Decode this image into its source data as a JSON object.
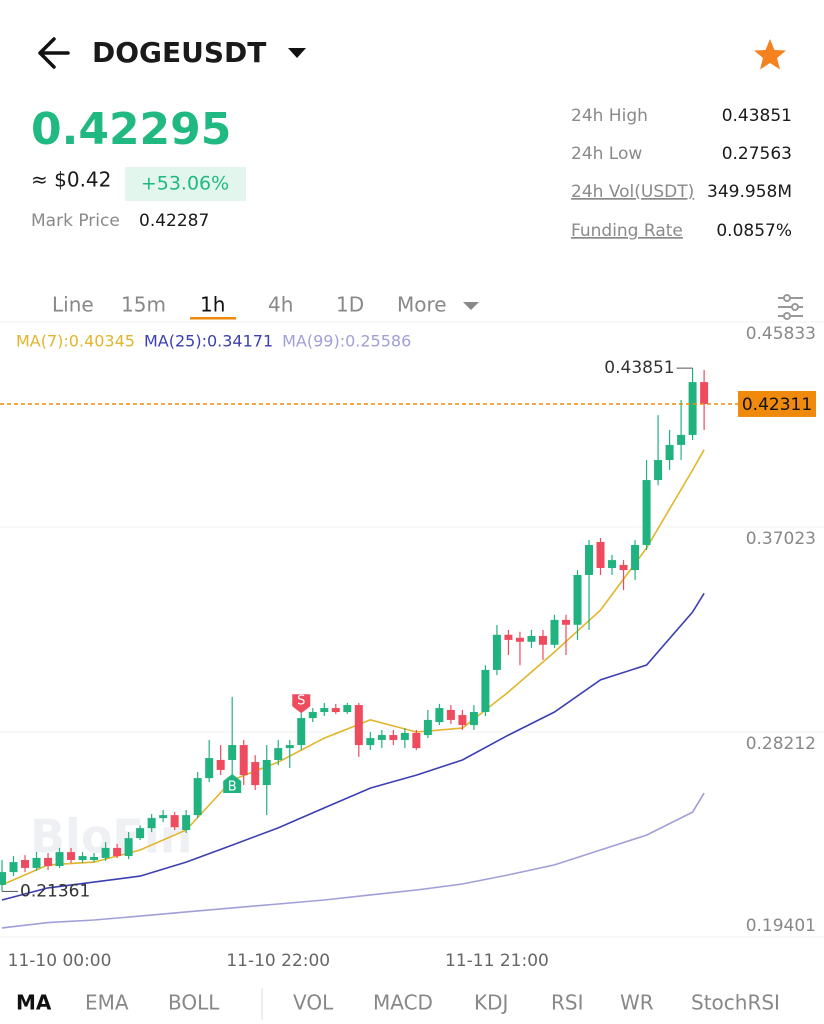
{
  "header": {
    "symbol": "DOGEUSDT"
  },
  "ticker": {
    "price": "0.42295",
    "usd": "≈ $0.42",
    "change": "+53.06%",
    "mark_price_label": "Mark Price",
    "mark_price": "0.42287",
    "stats": [
      {
        "label": "24h High",
        "value": "0.43851"
      },
      {
        "label": "24h Low",
        "value": "0.27563"
      },
      {
        "label": "24h Vol(USDT)",
        "value": "349.958M"
      },
      {
        "label": "Funding Rate",
        "value": "0.0857%"
      }
    ]
  },
  "intervals": [
    "Line",
    "15m",
    "1h",
    "4h",
    "1D",
    "More"
  ],
  "indicator_tabs": [
    "MA",
    "EMA",
    "BOLL",
    "VOL",
    "MACD",
    "KDJ",
    "RSI",
    "WR",
    "StochRSI"
  ],
  "chart_data": {
    "type": "candlestick",
    "watermark": "BloFin",
    "categories": [
      null,
      null,
      null,
      null,
      null,
      "11-10 00:00",
      null,
      null,
      null,
      null,
      null,
      null,
      null,
      null,
      null,
      null,
      null,
      null,
      null,
      null,
      null,
      null,
      null,
      null,
      "11-10 22:00",
      null,
      null,
      null,
      null,
      null,
      null,
      null,
      null,
      null,
      null,
      null,
      null,
      null,
      null,
      null,
      null,
      null,
      null,
      "11-11 21:00",
      null,
      null,
      null,
      null,
      null,
      null,
      null,
      null,
      null,
      null,
      null,
      null,
      null,
      null,
      null,
      null,
      null,
      null
    ],
    "candles": {
      "open": [
        0.2164,
        0.2219,
        0.2271,
        0.2237,
        0.228,
        0.2245,
        0.2305,
        0.2271,
        0.2271,
        0.228,
        0.2323,
        0.2288,
        0.2365,
        0.2408,
        0.2451,
        0.2464,
        0.24,
        0.2464,
        0.2623,
        0.2701,
        0.2701,
        0.2765,
        0.2692,
        0.2593,
        0.2701,
        0.2752,
        0.2765,
        0.2881,
        0.2907,
        0.2924,
        0.2907,
        0.2937,
        0.2765,
        0.2787,
        0.2808,
        0.2787,
        0.2817,
        0.2808,
        0.2864,
        0.2916,
        0.2894,
        0.2851,
        0.2907,
        0.3088,
        0.3239,
        0.3226,
        0.3209,
        0.3234,
        0.3196,
        0.3303,
        0.3282,
        0.3496,
        0.3638,
        0.3526,
        0.3539,
        0.3517,
        0.3625,
        0.3904,
        0.399,
        0.4055,
        0.4098,
        0.4325
      ],
      "high": [
        0.2271,
        0.2288,
        0.2292,
        0.2305,
        0.2301,
        0.2323,
        0.2323,
        0.2305,
        0.2301,
        0.2348,
        0.234,
        0.2391,
        0.242,
        0.2469,
        0.2486,
        0.2477,
        0.2486,
        0.2649,
        0.2787,
        0.2765,
        0.2972,
        0.2787,
        0.2722,
        0.2765,
        0.2787,
        0.2787,
        0.2902,
        0.2924,
        0.2946,
        0.2942,
        0.2946,
        0.2946,
        0.2821,
        0.283,
        0.283,
        0.2838,
        0.283,
        0.2916,
        0.2942,
        0.2937,
        0.2916,
        0.2937,
        0.3108,
        0.3281,
        0.326,
        0.3252,
        0.326,
        0.326,
        0.3325,
        0.3325,
        0.3517,
        0.3646,
        0.3655,
        0.3582,
        0.356,
        0.3646,
        0.399,
        0.4183,
        0.4119,
        0.4248,
        0.43851,
        0.4377
      ],
      "low": [
        0.21361,
        0.2202,
        0.2219,
        0.2224,
        0.2228,
        0.2237,
        0.2258,
        0.2258,
        0.2262,
        0.2267,
        0.228,
        0.2275,
        0.2357,
        0.2391,
        0.2434,
        0.24,
        0.2387,
        0.2451,
        0.2606,
        0.2636,
        0.2572,
        0.2593,
        0.2572,
        0.2464,
        0.2679,
        0.2666,
        0.2744,
        0.2864,
        0.289,
        0.2899,
        0.2899,
        0.2714,
        0.2744,
        0.2752,
        0.2765,
        0.2752,
        0.2744,
        0.2795,
        0.2851,
        0.2856,
        0.283,
        0.283,
        0.289,
        0.3066,
        0.3152,
        0.3108,
        0.3183,
        0.3131,
        0.3183,
        0.3152,
        0.3217,
        0.326,
        0.3496,
        0.3496,
        0.3431,
        0.3474,
        0.3603,
        0.3882,
        0.3947,
        0.399,
        0.4076,
        0.4119
      ],
      "close": [
        0.2219,
        0.2262,
        0.2237,
        0.228,
        0.2245,
        0.2305,
        0.2271,
        0.2288,
        0.2284,
        0.2323,
        0.2288,
        0.2365,
        0.2408,
        0.2451,
        0.2464,
        0.2412,
        0.2464,
        0.2623,
        0.2709,
        0.2658,
        0.2765,
        0.2636,
        0.2593,
        0.2701,
        0.2752,
        0.2765,
        0.2881,
        0.2907,
        0.2924,
        0.2907,
        0.2937,
        0.2765,
        0.2795,
        0.2808,
        0.2787,
        0.2817,
        0.2752,
        0.2873,
        0.2924,
        0.2873,
        0.2851,
        0.2907,
        0.3088,
        0.3239,
        0.3217,
        0.3209,
        0.3234,
        0.3196,
        0.3303,
        0.3282,
        0.3496,
        0.3625,
        0.3526,
        0.356,
        0.3517,
        0.3625,
        0.3904,
        0.399,
        0.4055,
        0.4098,
        0.4325,
        0.42311
      ]
    },
    "up_color": "#20b27f",
    "down_color": "#ef4b5f",
    "series": [
      {
        "name": "MA(7):0.40345",
        "color": "#e2b52c",
        "x": [
          0,
          4,
          8,
          12,
          16,
          20,
          24,
          28,
          32,
          36,
          40,
          44,
          48,
          52,
          56,
          60,
          61
        ],
        "values": [
          0.2164,
          0.225,
          0.2262,
          0.2314,
          0.24,
          0.2615,
          0.2692,
          0.2795,
          0.2873,
          0.2821,
          0.2838,
          0.2993,
          0.3165,
          0.3345,
          0.3612,
          0.3947,
          0.40345
        ]
      },
      {
        "name": "MA(25):0.34171",
        "color": "#3b40b3",
        "x": [
          0,
          4,
          8,
          12,
          16,
          20,
          24,
          28,
          32,
          36,
          40,
          44,
          48,
          52,
          56,
          60,
          61
        ],
        "values": [
          0.2099,
          0.2151,
          0.2176,
          0.2202,
          0.2262,
          0.2335,
          0.2409,
          0.2495,
          0.258,
          0.2636,
          0.2701,
          0.2808,
          0.2907,
          0.3045,
          0.3109,
          0.3337,
          0.34171
        ]
      },
      {
        "name": "MA(99):0.25586",
        "color": "#a19fd8",
        "x": [
          0,
          4,
          8,
          12,
          16,
          20,
          24,
          28,
          32,
          36,
          40,
          44,
          48,
          52,
          56,
          60,
          61
        ],
        "values": [
          0.1979,
          0.2002,
          0.2013,
          0.203,
          0.2048,
          0.2065,
          0.2082,
          0.2099,
          0.2121,
          0.2142,
          0.2168,
          0.2207,
          0.225,
          0.2314,
          0.2378,
          0.2477,
          0.25586
        ]
      }
    ],
    "markers": [
      {
        "label": "B",
        "index": 20,
        "color": "#20b27f"
      },
      {
        "label": "S",
        "index": 26,
        "color": "#ef4b5f"
      }
    ],
    "last_price_color": "#f08a0c",
    "ylim": [
      0.19401,
      0.45833
    ],
    "yticks": [
      0.45833,
      0.37023,
      0.28212,
      0.19401
    ],
    "grid": true
  }
}
